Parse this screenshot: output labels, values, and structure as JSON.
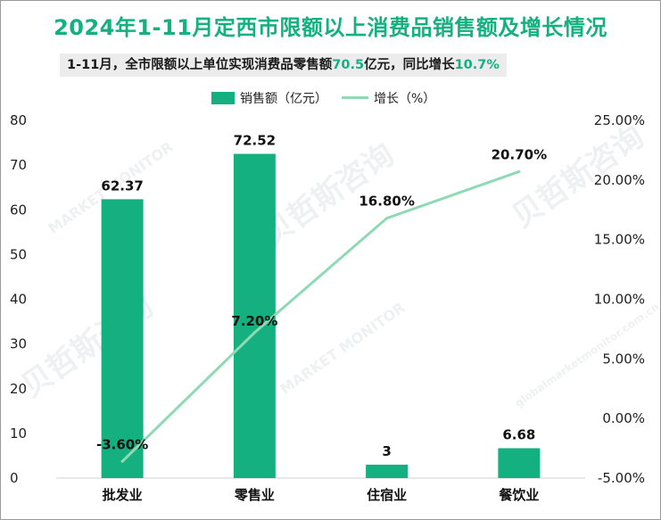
{
  "title": "2024年1-11月定西市限额以上消费品销售额及增长情况",
  "subtitle": {
    "prefix": "1-11月，全市限额以上单位实现消费品零售额",
    "value1": "70.5",
    "mid": "亿元，同比增长",
    "value2": "10.7%"
  },
  "watermark": {
    "cn": "贝哲斯咨询",
    "en": "MARKET MONITOR",
    "url": "globalmarketmonitor.com.cn"
  },
  "colors": {
    "bar": "#14b07f",
    "line": "#8fdab5",
    "title": "#14b07f"
  },
  "chart_data": {
    "type": "bar+line",
    "categories": [
      "批发业",
      "零售业",
      "住宿业",
      "餐饮业"
    ],
    "series": [
      {
        "name": "销售额（亿元）",
        "type": "bar",
        "axis": "left",
        "values": [
          62.37,
          72.52,
          3,
          6.68
        ],
        "labels": [
          "62.37",
          "72.52",
          "3",
          "6.68"
        ]
      },
      {
        "name": "增长（%）",
        "type": "line",
        "axis": "right",
        "values": [
          -3.6,
          7.2,
          16.8,
          20.7
        ],
        "labels": [
          "-3.60%",
          "7.20%",
          "16.80%",
          "20.70%"
        ]
      }
    ],
    "y_left": {
      "min": 0,
      "max": 80,
      "ticks": [
        "0",
        "10",
        "20",
        "30",
        "40",
        "50",
        "60",
        "70",
        "80"
      ]
    },
    "y_right": {
      "min": -5,
      "max": 25,
      "ticks": [
        "-5.00%",
        "0.00%",
        "5.00%",
        "10.00%",
        "15.00%",
        "20.00%",
        "25.00%"
      ]
    },
    "legend": [
      "销售额（亿元）",
      "增长（%）"
    ],
    "legend_position": "top"
  }
}
